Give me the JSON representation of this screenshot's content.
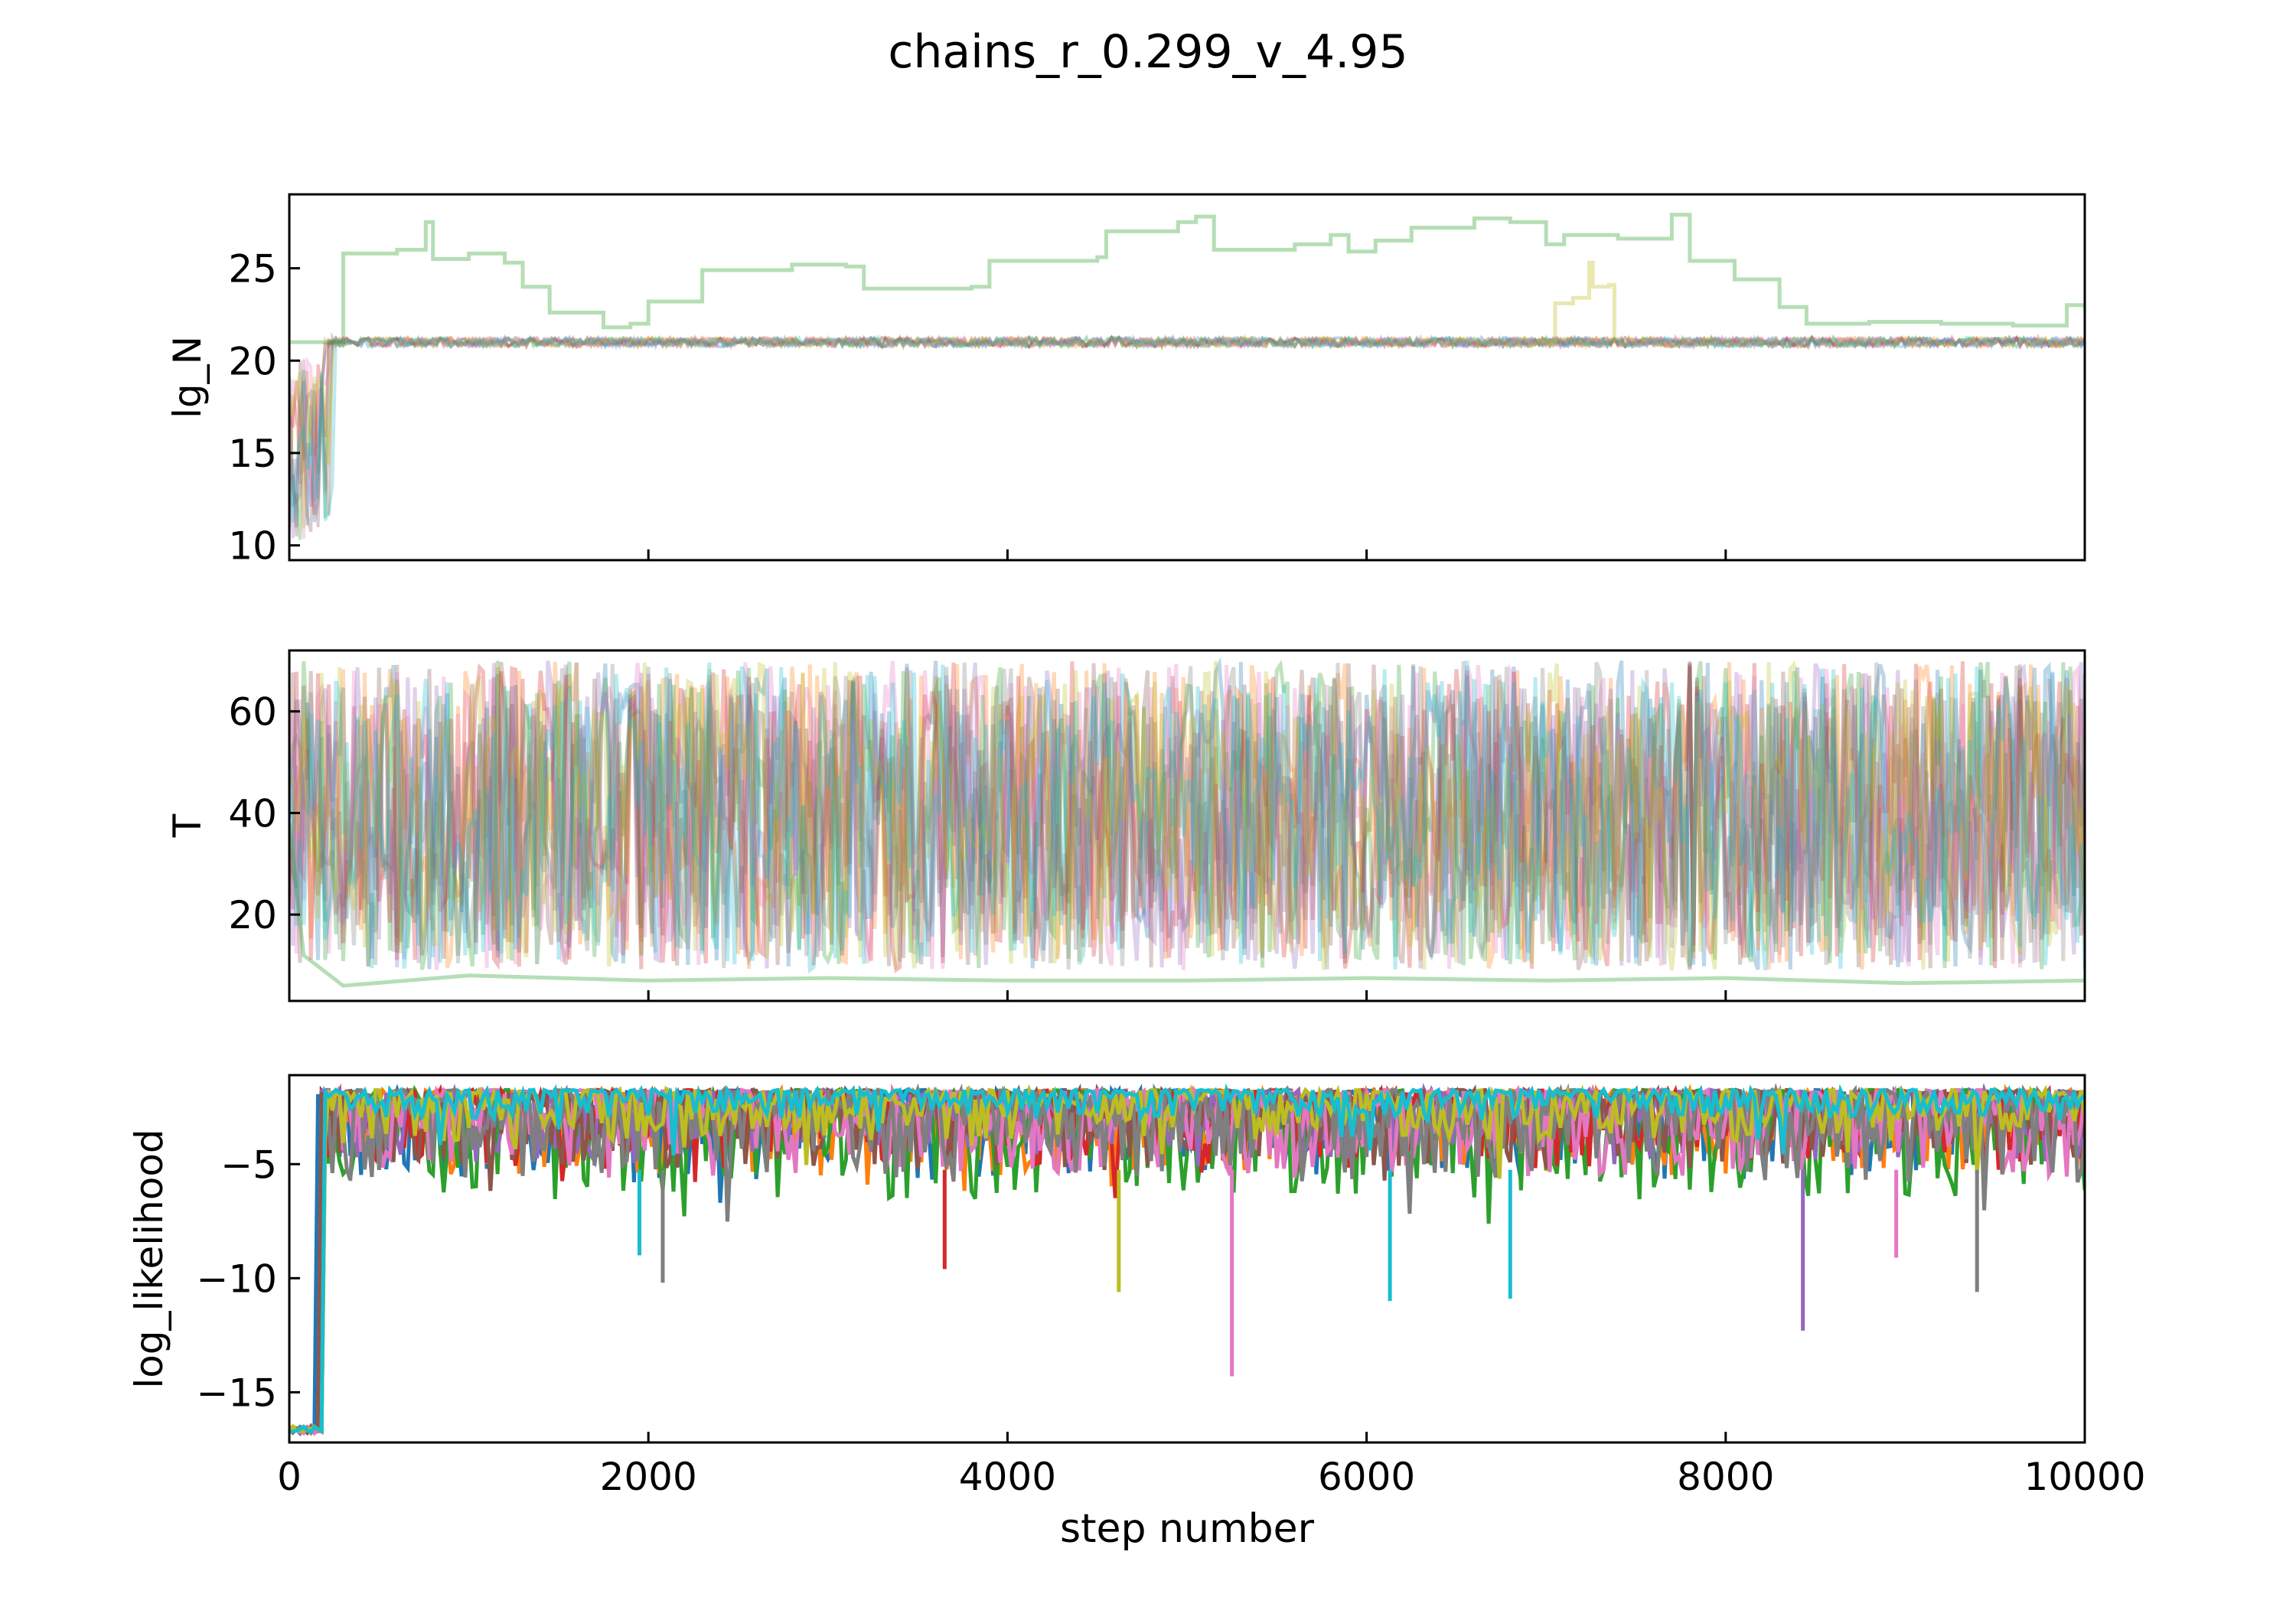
{
  "figure": {
    "title": "chains_r_0.299_v_4.95"
  },
  "colors": [
    "#1f77b4",
    "#ff7f0e",
    "#2ca02c",
    "#d62728",
    "#9467bd",
    "#8c564b",
    "#e377c2",
    "#7f7f7f",
    "#bcbd22",
    "#17becf"
  ],
  "chart_data": [
    {
      "type": "line",
      "ylabel": "lg_N",
      "xlim": [
        0,
        10000
      ],
      "ylim": [
        9.2,
        29.0
      ],
      "yticks": [
        10,
        15,
        20,
        25
      ],
      "ytick_labels": [
        "10",
        "15",
        "20",
        "25"
      ],
      "xticks": [
        0,
        2000,
        4000,
        6000,
        8000,
        10000
      ],
      "xtick_labels": [],
      "alpha": 0.3,
      "band": {
        "center": 21.0,
        "spread": 0.25
      },
      "burn_in": {
        "end_step": 330,
        "range": [
          10.2,
          20.5
        ]
      },
      "outlier_series": [
        {
          "color": "#2ca02c",
          "points": [
            [
              0,
              21.0
            ],
            [
              300,
              21.0
            ],
            [
              300,
              25.8
            ],
            [
              600,
              26.0
            ],
            [
              760,
              27.5
            ],
            [
              800,
              25.5
            ],
            [
              1000,
              25.8
            ],
            [
              1200,
              25.3
            ],
            [
              1300,
              24.0
            ],
            [
              1450,
              22.6
            ],
            [
              1750,
              21.8
            ],
            [
              1900,
              22.0
            ],
            [
              2000,
              23.2
            ],
            [
              2300,
              24.9
            ],
            [
              2800,
              25.2
            ],
            [
              3100,
              25.1
            ],
            [
              3200,
              23.9
            ],
            [
              3800,
              24.0
            ],
            [
              3900,
              25.4
            ],
            [
              4500,
              25.6
            ],
            [
              4550,
              27.0
            ],
            [
              4950,
              27.5
            ],
            [
              5050,
              27.8
            ],
            [
              5150,
              26.0
            ],
            [
              5600,
              26.3
            ],
            [
              5800,
              26.8
            ],
            [
              5900,
              25.9
            ],
            [
              6050,
              26.5
            ],
            [
              6250,
              27.2
            ],
            [
              6600,
              27.7
            ],
            [
              6800,
              27.5
            ],
            [
              7000,
              26.3
            ],
            [
              7100,
              26.8
            ],
            [
              7400,
              26.6
            ],
            [
              7700,
              27.9
            ],
            [
              7800,
              25.4
            ],
            [
              8050,
              24.4
            ],
            [
              8300,
              22.9
            ],
            [
              8450,
              22.0
            ],
            [
              8800,
              22.1
            ],
            [
              9200,
              22.0
            ],
            [
              9600,
              21.9
            ],
            [
              9900,
              23.0
            ],
            [
              10000,
              22.8
            ]
          ]
        },
        {
          "color": "#bcbd22",
          "points": [
            [
              6950,
              21.0
            ],
            [
              7050,
              23.1
            ],
            [
              7150,
              23.4
            ],
            [
              7240,
              25.3
            ],
            [
              7260,
              24.0
            ],
            [
              7350,
              24.1
            ],
            [
              7380,
              21.0
            ]
          ]
        }
      ]
    },
    {
      "type": "line",
      "ylabel": "T",
      "xlim": [
        0,
        10000
      ],
      "ylim": [
        3,
        72
      ],
      "yticks": [
        20,
        40,
        60
      ],
      "ytick_labels": [
        "20",
        "40",
        "60"
      ],
      "xticks": [
        0,
        2000,
        4000,
        6000,
        8000,
        10000
      ],
      "xtick_labels": [],
      "alpha": 0.3,
      "range": [
        9,
        70
      ],
      "outlier_series": [
        {
          "color": "#2ca02c",
          "points": [
            [
              0,
              38
            ],
            [
              80,
              12
            ],
            [
              300,
              6
            ],
            [
              1000,
              8
            ],
            [
              2000,
              7
            ],
            [
              3000,
              7.5
            ],
            [
              4000,
              7
            ],
            [
              5000,
              7
            ],
            [
              6000,
              7.5
            ],
            [
              7000,
              7
            ],
            [
              8000,
              7.5
            ],
            [
              9000,
              6.5
            ],
            [
              10000,
              7
            ]
          ]
        }
      ]
    },
    {
      "type": "line",
      "ylabel": "log_likelihood",
      "xlabel": "step number",
      "xlim": [
        0,
        10000
      ],
      "ylim": [
        -17.2,
        -1.1
      ],
      "yticks": [
        -15,
        -10,
        -5
      ],
      "ytick_labels": [
        "−15",
        "−10",
        "−5"
      ],
      "xticks": [
        0,
        2000,
        4000,
        6000,
        8000,
        10000
      ],
      "xtick_labels": [
        "0",
        "2000",
        "4000",
        "6000",
        "8000",
        "10000"
      ],
      "alpha": 1.0,
      "ceiling": -1.75,
      "burn_in": {
        "end_step": 330,
        "floor": -16.8
      },
      "spikes": [
        {
          "x": 2080,
          "y": -10.2,
          "color": "#7f7f7f"
        },
        {
          "x": 4620,
          "y": -10.6,
          "color": "#bcbd22"
        },
        {
          "x": 5250,
          "y": -14.3,
          "color": "#e377c2"
        },
        {
          "x": 6130,
          "y": -11.0,
          "color": "#17becf"
        },
        {
          "x": 6800,
          "y": -10.9,
          "color": "#17becf"
        },
        {
          "x": 8430,
          "y": -12.3,
          "color": "#9467bd"
        },
        {
          "x": 9400,
          "y": -10.6,
          "color": "#7f7f7f"
        },
        {
          "x": 8950,
          "y": -9.1,
          "color": "#e377c2"
        },
        {
          "x": 3650,
          "y": -9.6,
          "color": "#d62728"
        },
        {
          "x": 1950,
          "y": -9.0,
          "color": "#17becf"
        }
      ]
    }
  ]
}
